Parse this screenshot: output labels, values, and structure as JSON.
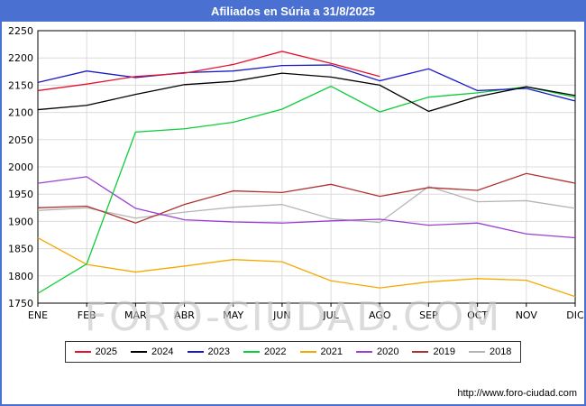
{
  "title": "Afiliados en Súria a 31/8/2025",
  "watermark": "FORO-CIUDAD.COM",
  "footer": {
    "url": "http://www.foro-ciudad.com"
  },
  "colors": {
    "titlebar": "#4a70d2",
    "frame": "#4a70d2",
    "grid": "#dcdcdc",
    "plot_border": "#000000"
  },
  "chart_data": {
    "type": "line",
    "title": "Afiliados en Súria a 31/8/2025",
    "xlabel": "",
    "ylabel": "",
    "ylim": [
      1750,
      2250
    ],
    "ytick_step": 50,
    "grid": true,
    "legend_position": "bottom",
    "categories": [
      "ENE",
      "FEB",
      "MAR",
      "ABR",
      "MAY",
      "JUN",
      "JUL",
      "AGO",
      "SEP",
      "OCT",
      "NOV",
      "DIC"
    ],
    "series": [
      {
        "name": "2025",
        "color": "#e8112d",
        "values": [
          2140,
          2152,
          2166,
          2172,
          2188,
          2212,
          2190,
          2166
        ]
      },
      {
        "name": "2024",
        "color": "#000000",
        "values": [
          2105,
          2113,
          2133,
          2151,
          2157,
          2172,
          2165,
          2150,
          2102,
          2129,
          2147,
          2131
        ]
      },
      {
        "name": "2023",
        "color": "#1a1ac8",
        "values": [
          2155,
          2176,
          2164,
          2173,
          2176,
          2186,
          2187,
          2158,
          2180,
          2140,
          2144,
          2121
        ]
      },
      {
        "name": "2022",
        "color": "#0ecc3a",
        "values": [
          1768,
          1822,
          2064,
          2070,
          2082,
          2106,
          2148,
          2101,
          2128,
          2136,
          2147,
          2128
        ]
      },
      {
        "name": "2021",
        "color": "#f5a800",
        "values": [
          1870,
          1821,
          1807,
          1818,
          1830,
          1826,
          1791,
          1778,
          1789,
          1795,
          1792,
          1762
        ]
      },
      {
        "name": "2020",
        "color": "#9b3fd4",
        "values": [
          1970,
          1982,
          1924,
          1903,
          1899,
          1897,
          1901,
          1904,
          1893,
          1897,
          1877,
          1870
        ]
      },
      {
        "name": "2019",
        "color": "#b03030",
        "values": [
          1925,
          1928,
          1897,
          1931,
          1956,
          1953,
          1968,
          1946,
          1962,
          1957,
          1988,
          1970
        ]
      },
      {
        "name": "2018",
        "color": "#b5b5b5",
        "values": [
          1920,
          1925,
          1906,
          1917,
          1926,
          1931,
          1905,
          1898,
          1964,
          1936,
          1938,
          1924
        ]
      }
    ]
  }
}
